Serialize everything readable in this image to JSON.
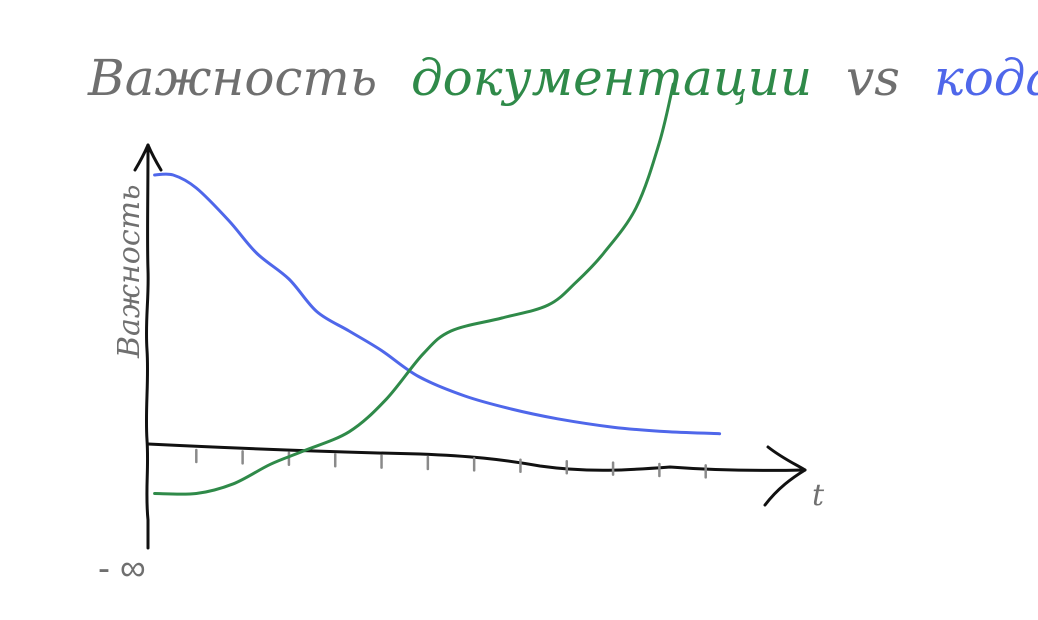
{
  "chart_data": {
    "type": "line",
    "title": {
      "parts": [
        {
          "text": "Важность",
          "color": "#6f6f6f"
        },
        {
          "text": "документации",
          "color": "#2f8a49"
        },
        {
          "text": "vs",
          "color": "#6f6f6f"
        },
        {
          "text": "кода",
          "color": "#4f67ea"
        }
      ]
    },
    "ylabel": "Важность",
    "xlabel": "t",
    "ymin_label": "- ∞",
    "xlim": [
      0,
      13
    ],
    "ylim": [
      -1,
      5
    ],
    "x_ticks": [
      1,
      2,
      3,
      4,
      5,
      6,
      7,
      8,
      9,
      10,
      11,
      12
    ],
    "grid": false,
    "legend": "none",
    "series": [
      {
        "color": "#4f67ea",
        "x": [
          0.1,
          0.5,
          1.0,
          1.7,
          2.3,
          3.0,
          3.6,
          4.3,
          5.0,
          5.8,
          6.8,
          7.8,
          8.8,
          10.0,
          11.2,
          12.3
        ],
        "y": [
          4.0,
          4.0,
          3.8,
          3.3,
          2.8,
          2.4,
          1.9,
          1.6,
          1.3,
          0.9,
          0.6,
          0.4,
          0.25,
          0.12,
          0.05,
          0.02
        ]
      },
      {
        "color": "#2f8a49",
        "x": [
          0.1,
          1.0,
          1.8,
          2.6,
          3.3,
          4.3,
          5.1,
          5.9,
          6.5,
          7.6,
          8.6,
          9.2,
          9.8,
          10.5,
          11.0,
          11.3
        ],
        "y": [
          -0.9,
          -0.9,
          -0.75,
          -0.45,
          -0.25,
          0.05,
          0.55,
          1.25,
          1.6,
          1.8,
          2.0,
          2.35,
          2.8,
          3.5,
          4.5,
          5.4
        ]
      }
    ]
  }
}
